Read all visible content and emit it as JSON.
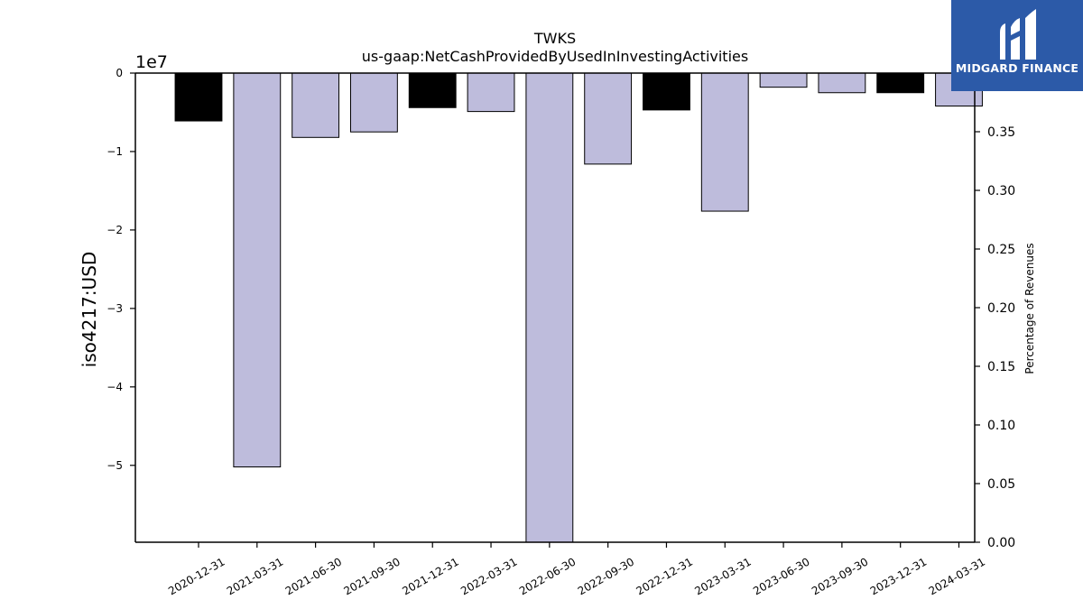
{
  "chart_data": {
    "type": "bar",
    "title": "TWKS",
    "subtitle": "us-gaap:NetCashProvidedByUsedInInvestingActivities",
    "ylabel": "iso4217:USD",
    "y_offset_label": "1e7",
    "y2label": "Percentage of Revenues",
    "categories": [
      "2020-12-31",
      "2021-03-31",
      "2021-06-30",
      "2021-09-30",
      "2021-12-31",
      "2022-03-31",
      "2022-06-30",
      "2022-09-30",
      "2022-12-31",
      "2023-03-31",
      "2023-06-30",
      "2023-09-30",
      "2023-12-31",
      "2024-03-31"
    ],
    "values": [
      -6100000,
      -50200000,
      -8200000,
      -7500000,
      -4400000,
      -4900000,
      -60000000,
      -11600000,
      -4700000,
      -17600000,
      -1800000,
      -2500000,
      -2500000,
      -4200000
    ],
    "bar_colors": [
      "#000000",
      "#bebcdc",
      "#bebcdc",
      "#bebcdc",
      "#000000",
      "#bebcdc",
      "#bebcdc",
      "#bebcdc",
      "#000000",
      "#bebcdc",
      "#bebcdc",
      "#bebcdc",
      "#000000",
      "#bebcdc"
    ],
    "ylim": [
      -59800000,
      0
    ],
    "yticks": [
      0,
      -10000000,
      -20000000,
      -30000000,
      -40000000,
      -50000000
    ],
    "ytick_labels": [
      "0",
      "−1",
      "−2",
      "−3",
      "−4",
      "−5"
    ],
    "y2lim": [
      0,
      0.4
    ],
    "y2ticks": [
      0,
      0.05,
      0.1,
      0.15,
      0.2,
      0.25,
      0.3,
      0.35
    ],
    "y2tick_labels": [
      "0.00",
      "0.05",
      "0.10",
      "0.15",
      "0.20",
      "0.25",
      "0.30",
      "0.35"
    ],
    "grid": false
  },
  "logo": {
    "text": "MIDGARD FINANCE"
  },
  "colors": {
    "logo_bg": "#2c5aa8",
    "bar_light": "#bebcdc",
    "bar_dark": "#000000"
  }
}
